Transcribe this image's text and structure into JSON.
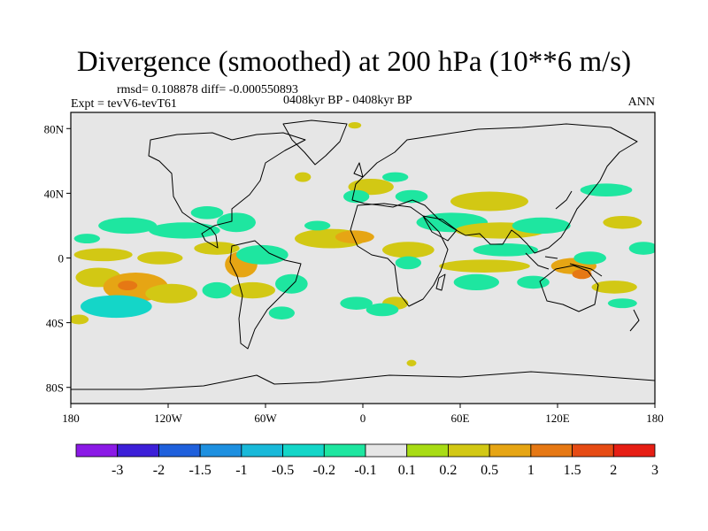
{
  "title": "Divergence (smoothed) at 200 hPa (10**6 m/s)",
  "stats": "rmsd= 0.108878 diff= -0.000550893",
  "experiment": "Expt = tevV6-tevT61",
  "period": "0408kyr BP - 0408kyr BP",
  "season": "ANN",
  "chart_data": {
    "type": "heatmap",
    "projection": "cylindrical-equidistant",
    "xlim": [
      -180,
      180
    ],
    "ylim": [
      -90,
      90
    ],
    "x_ticks": [
      {
        "value": -180,
        "label": "180"
      },
      {
        "value": -120,
        "label": "120W"
      },
      {
        "value": -60,
        "label": "60W"
      },
      {
        "value": 0,
        "label": "0"
      },
      {
        "value": 60,
        "label": "60E"
      },
      {
        "value": 120,
        "label": "120E"
      },
      {
        "value": 180,
        "label": "180"
      }
    ],
    "y_ticks": [
      {
        "value": 80,
        "label": "80N"
      },
      {
        "value": 40,
        "label": "40N"
      },
      {
        "value": 0,
        "label": "0"
      },
      {
        "value": -40,
        "label": "40S"
      },
      {
        "value": -80,
        "label": "80S"
      }
    ],
    "colorbar": {
      "labels": [
        "-3",
        "-2",
        "-1.5",
        "-1",
        "-0.5",
        "-0.2",
        "-0.1",
        "0.1",
        "0.2",
        "0.5",
        "1",
        "1.5",
        "2",
        "3"
      ],
      "colors": [
        "#8b1ae6",
        "#3c1fd8",
        "#1f60dc",
        "#1e90e0",
        "#19b9d9",
        "#14d6c8",
        "#1ee6a0",
        "#e6e6e6",
        "#a8dc14",
        "#d2c814",
        "#e6a514",
        "#e67814",
        "#e64b14",
        "#e61e14"
      ]
    },
    "anomaly_regions": [
      {
        "lon": -163,
        "lat": -12,
        "rx": 14,
        "ry": 6,
        "class": "0.2"
      },
      {
        "lon": -140,
        "lat": -18,
        "rx": 20,
        "ry": 9,
        "class": "0.5"
      },
      {
        "lon": -145,
        "lat": -17,
        "rx": 6,
        "ry": 3,
        "class": "1"
      },
      {
        "lon": -152,
        "lat": -30,
        "rx": 22,
        "ry": 7,
        "class": "-0.5"
      },
      {
        "lon": -118,
        "lat": -22,
        "rx": 16,
        "ry": 6,
        "class": "0.2"
      },
      {
        "lon": -145,
        "lat": 20,
        "rx": 18,
        "ry": 5,
        "class": "-0.2"
      },
      {
        "lon": -110,
        "lat": 17,
        "rx": 22,
        "ry": 5,
        "class": "-0.2"
      },
      {
        "lon": -170,
        "lat": 12,
        "rx": 8,
        "ry": 3,
        "class": "-0.2"
      },
      {
        "lon": -160,
        "lat": 2,
        "rx": 18,
        "ry": 4,
        "class": "0.2"
      },
      {
        "lon": -125,
        "lat": 0,
        "rx": 14,
        "ry": 4,
        "class": "0.2"
      },
      {
        "lon": -90,
        "lat": 6,
        "rx": 14,
        "ry": 4,
        "class": "0.2"
      },
      {
        "lon": -75,
        "lat": -4,
        "rx": 10,
        "ry": 8,
        "class": "0.5"
      },
      {
        "lon": -62,
        "lat": 2,
        "rx": 16,
        "ry": 6,
        "class": "-0.2"
      },
      {
        "lon": -78,
        "lat": 22,
        "rx": 12,
        "ry": 6,
        "class": "-0.2"
      },
      {
        "lon": -96,
        "lat": 28,
        "rx": 10,
        "ry": 4,
        "class": "-0.2"
      },
      {
        "lon": -68,
        "lat": -20,
        "rx": 14,
        "ry": 5,
        "class": "0.2"
      },
      {
        "lon": -90,
        "lat": -20,
        "rx": 9,
        "ry": 5,
        "class": "-0.2"
      },
      {
        "lon": -44,
        "lat": -16,
        "rx": 10,
        "ry": 6,
        "class": "-0.2"
      },
      {
        "lon": -50,
        "lat": -34,
        "rx": 8,
        "ry": 4,
        "class": "-0.2"
      },
      {
        "lon": -20,
        "lat": 12,
        "rx": 22,
        "ry": 6,
        "class": "0.2"
      },
      {
        "lon": -5,
        "lat": 13,
        "rx": 12,
        "ry": 4,
        "class": "0.5"
      },
      {
        "lon": -28,
        "lat": 20,
        "rx": 8,
        "ry": 3,
        "class": "-0.2"
      },
      {
        "lon": -37,
        "lat": 50,
        "rx": 5,
        "ry": 3,
        "class": "0.2"
      },
      {
        "lon": 5,
        "lat": 44,
        "rx": 14,
        "ry": 5,
        "class": "0.2"
      },
      {
        "lon": 20,
        "lat": 50,
        "rx": 8,
        "ry": 3,
        "class": "-0.2"
      },
      {
        "lon": -4,
        "lat": 38,
        "rx": 8,
        "ry": 4,
        "class": "-0.2"
      },
      {
        "lon": 30,
        "lat": 38,
        "rx": 10,
        "ry": 4,
        "class": "-0.2"
      },
      {
        "lon": 28,
        "lat": 5,
        "rx": 16,
        "ry": 5,
        "class": "0.2"
      },
      {
        "lon": 28,
        "lat": -3,
        "rx": 8,
        "ry": 4,
        "class": "-0.2"
      },
      {
        "lon": 20,
        "lat": -28,
        "rx": 8,
        "ry": 4,
        "class": "0.2"
      },
      {
        "lon": -4,
        "lat": -28,
        "rx": 10,
        "ry": 4,
        "class": "-0.2"
      },
      {
        "lon": 55,
        "lat": 22,
        "rx": 22,
        "ry": 6,
        "class": "-0.2"
      },
      {
        "lon": 78,
        "lat": 35,
        "rx": 24,
        "ry": 6,
        "class": "0.2"
      },
      {
        "lon": 85,
        "lat": 17,
        "rx": 28,
        "ry": 5,
        "class": "0.2"
      },
      {
        "lon": 110,
        "lat": 20,
        "rx": 18,
        "ry": 5,
        "class": "-0.2"
      },
      {
        "lon": 88,
        "lat": 5,
        "rx": 20,
        "ry": 4,
        "class": "-0.2"
      },
      {
        "lon": 75,
        "lat": -5,
        "rx": 28,
        "ry": 4,
        "class": "0.2"
      },
      {
        "lon": 70,
        "lat": -15,
        "rx": 14,
        "ry": 5,
        "class": "-0.2"
      },
      {
        "lon": 105,
        "lat": -15,
        "rx": 10,
        "ry": 4,
        "class": "-0.2"
      },
      {
        "lon": 130,
        "lat": -5,
        "rx": 14,
        "ry": 5,
        "class": "0.5"
      },
      {
        "lon": 135,
        "lat": -10,
        "rx": 6,
        "ry": 3,
        "class": "1"
      },
      {
        "lon": 140,
        "lat": 0,
        "rx": 10,
        "ry": 4,
        "class": "-0.2"
      },
      {
        "lon": 150,
        "lat": 42,
        "rx": 16,
        "ry": 4,
        "class": "-0.2"
      },
      {
        "lon": 160,
        "lat": 22,
        "rx": 12,
        "ry": 4,
        "class": "0.2"
      },
      {
        "lon": 173,
        "lat": 6,
        "rx": 9,
        "ry": 4,
        "class": "-0.2"
      },
      {
        "lon": 155,
        "lat": -18,
        "rx": 14,
        "ry": 4,
        "class": "0.2"
      },
      {
        "lon": -175,
        "lat": -38,
        "rx": 6,
        "ry": 3,
        "class": "0.2"
      },
      {
        "lon": 160,
        "lat": -28,
        "rx": 9,
        "ry": 3,
        "class": "-0.2"
      },
      {
        "lon": 12,
        "lat": -32,
        "rx": 10,
        "ry": 4,
        "class": "-0.2"
      },
      {
        "lon": 30,
        "lat": -65,
        "rx": 3,
        "ry": 2,
        "class": "0.2"
      },
      {
        "lon": -5,
        "lat": 82,
        "rx": 4,
        "ry": 2,
        "class": "0.2"
      }
    ]
  }
}
